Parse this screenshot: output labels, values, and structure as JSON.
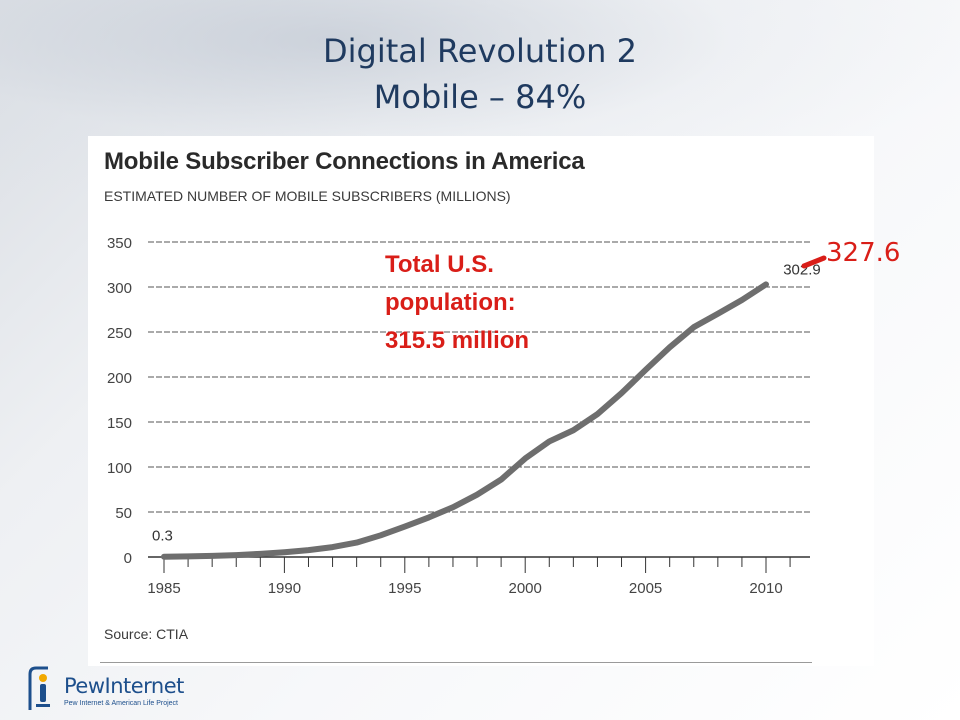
{
  "slide": {
    "title_line1": "Digital Revolution 2",
    "title_line2": "Mobile – 84%"
  },
  "annotation": {
    "line1": "Total U.S.",
    "line2": "population:",
    "line3": "315.5 million",
    "population_marker": "327.6"
  },
  "logo": {
    "name": "PewInternet",
    "tagline": "Pew Internet & American Life Project"
  },
  "colors": {
    "title": "#1f3a5f",
    "annotation": "#d91e18",
    "series_line": "#6e6e6e"
  },
  "chart_data": {
    "type": "line",
    "title": "Mobile Subscriber Connections in America",
    "subtitle": "ESTIMATED NUMBER OF MOBILE SUBSCRIBERS (MILLIONS)",
    "source": "Source: CTIA",
    "x": [
      1985,
      1986,
      1987,
      1988,
      1989,
      1990,
      1991,
      1992,
      1993,
      1994,
      1995,
      1996,
      1997,
      1998,
      1999,
      2000,
      2001,
      2002,
      2003,
      2004,
      2005,
      2006,
      2007,
      2008,
      2009,
      2010
    ],
    "series": [
      {
        "values": [
          0.3,
          0.7,
          1.2,
          2.1,
          3.5,
          5.3,
          7.6,
          11.0,
          16.0,
          24.1,
          33.8,
          44.0,
          55.3,
          69.2,
          86.0,
          109.5,
          128.4,
          140.8,
          158.7,
          182.1,
          207.9,
          233.0,
          255.4,
          270.3,
          285.6,
          302.9
        ]
      }
    ],
    "y_ticks": [
      0,
      50,
      100,
      150,
      200,
      250,
      300,
      350
    ],
    "x_tick_labels": [
      "1985",
      "1990",
      "1995",
      "2000",
      "2005",
      "2010"
    ],
    "data_labels": [
      {
        "x": 1985,
        "y": 0.3,
        "text": "0.3"
      },
      {
        "x": 2010,
        "y": 302.9,
        "text": "302.9"
      }
    ],
    "ylim": [
      0,
      350
    ],
    "xlim": [
      1985,
      2011
    ],
    "grid": true
  }
}
